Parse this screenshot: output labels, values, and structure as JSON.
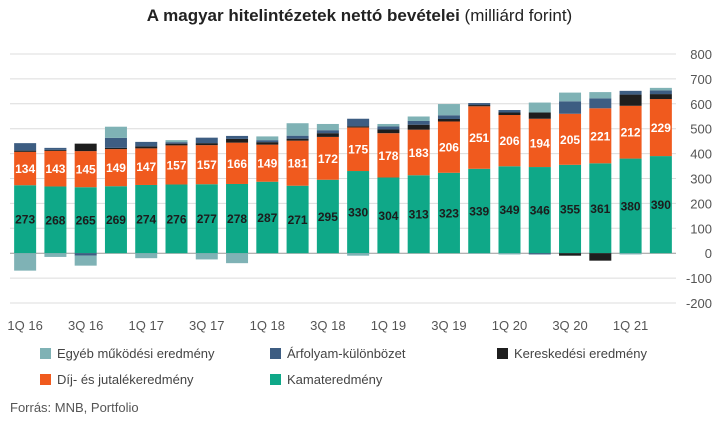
{
  "title": "A magyar hitelintézetek nettó bevételei",
  "subtitle": "(milliárd forint)",
  "source": "Forrás: MNB, Portfolio",
  "colors": {
    "egyeb": "#7fb2b5",
    "arfolyam": "#3d5d82",
    "keresk": "#1e1e1e",
    "dij": "#f05a1e",
    "kamat": "#0fa888",
    "grid": "#dcdcdc",
    "zero": "#999999"
  },
  "legend": [
    {
      "key": "egyeb",
      "label": "Egyéb működési eredmény"
    },
    {
      "key": "arfolyam",
      "label": "Árfolyam-különbözet"
    },
    {
      "key": "keresk",
      "label": "Kereskedési eredmény"
    },
    {
      "key": "dij",
      "label": "Díj- és jutalékeredmény"
    },
    {
      "key": "kamat",
      "label": "Kamateredmény"
    }
  ],
  "chart_data": {
    "type": "bar",
    "stacked": true,
    "title": "A magyar hitelintézetek nettó bevételei",
    "subtitle": "(milliárd forint)",
    "categories": [
      "1Q 16",
      "2Q 16",
      "3Q 16",
      "4Q 16",
      "1Q 17",
      "2Q 17",
      "3Q 17",
      "4Q 17",
      "1Q 18",
      "2Q 18",
      "3Q 18",
      "4Q 18",
      "1Q 19",
      "2Q 19",
      "3Q 19",
      "4Q 19",
      "1Q 20",
      "2Q 20",
      "3Q 20",
      "4Q 20",
      "1Q 21",
      "2Q 21"
    ],
    "x_tick_labels": [
      "1Q 16",
      "",
      "3Q 16",
      "",
      "1Q 17",
      "",
      "3Q 17",
      "",
      "1Q 18",
      "",
      "3Q 18",
      "",
      "1Q 19",
      "",
      "3Q 19",
      "",
      "1Q 20",
      "",
      "3Q 20",
      "",
      "1Q 21",
      ""
    ],
    "series": [
      {
        "name": "Kamateredmény",
        "key": "kamat",
        "labeled": true,
        "values": [
          273,
          268,
          265,
          269,
          274,
          276,
          277,
          278,
          287,
          271,
          295,
          330,
          304,
          313,
          323,
          339,
          349,
          346,
          355,
          361,
          380,
          390
        ]
      },
      {
        "name": "Díj- és jutalékeredmény",
        "key": "dij",
        "labeled": true,
        "values": [
          134,
          143,
          145,
          149,
          147,
          157,
          157,
          166,
          149,
          181,
          172,
          175,
          178,
          183,
          206,
          251,
          206,
          194,
          205,
          221,
          212,
          229
        ]
      },
      {
        "name": "Kereskedési eredmény",
        "key": "keresk",
        "labeled": false,
        "values": [
          5,
          4,
          30,
          5,
          8,
          7,
          8,
          15,
          10,
          8,
          15,
          5,
          15,
          20,
          10,
          5,
          10,
          25,
          -10,
          -30,
          45,
          20
        ]
      },
      {
        "name": "Árfolyam-különbözet",
        "key": "arfolyam",
        "labeled": false,
        "values": [
          30,
          8,
          -10,
          40,
          18,
          6,
          22,
          12,
          8,
          12,
          12,
          30,
          12,
          15,
          15,
          8,
          10,
          -5,
          50,
          40,
          15,
          15
        ]
      },
      {
        "name": "Egyéb működési eredmény",
        "key": "egyeb",
        "labeled": false,
        "values": [
          -70,
          -15,
          -40,
          45,
          -20,
          8,
          -25,
          -40,
          15,
          50,
          25,
          -10,
          10,
          18,
          45,
          -2,
          -5,
          40,
          35,
          25,
          -5,
          10
        ]
      }
    ],
    "ylim": [
      -200,
      800
    ],
    "yticks": [
      -200,
      -100,
      0,
      100,
      200,
      300,
      400,
      500,
      600,
      700,
      800
    ],
    "ytick_labels": [
      "-200",
      "-100",
      "0",
      "100",
      "200",
      "300",
      "400",
      "500",
      "600",
      "700",
      "800"
    ],
    "y_axis_side": "right",
    "grid": true,
    "legend_position": "bottom"
  }
}
